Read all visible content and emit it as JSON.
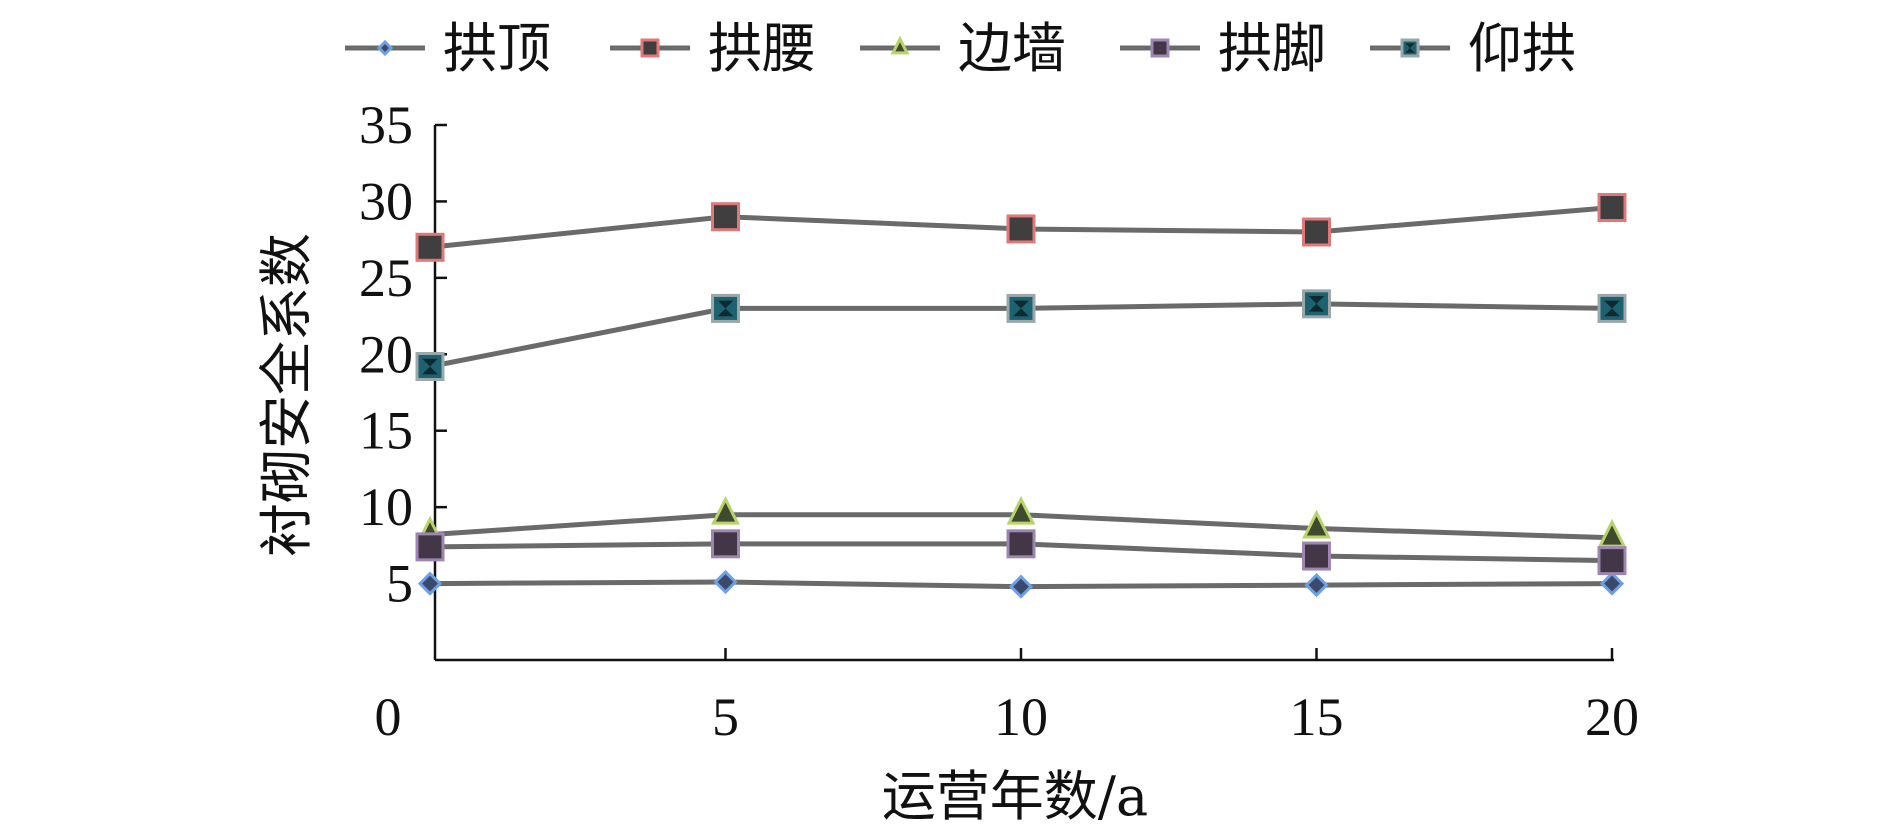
{
  "chart_data": {
    "type": "line",
    "title": "",
    "xlabel": "运营年数/a",
    "ylabel": "衬砌安全系数",
    "x": [
      0,
      5,
      10,
      15,
      20
    ],
    "x_ticks": [
      "0",
      "5",
      "10",
      "15",
      "20"
    ],
    "y_ticks": [
      "5",
      "10",
      "15",
      "20",
      "25",
      "30",
      "35"
    ],
    "xlim": [
      0,
      20
    ],
    "ylim": [
      0,
      35
    ],
    "grid": false,
    "legend_position": "top",
    "series": [
      {
        "name": "拱顶",
        "marker": "diamond",
        "marker_color": "#3b4a6b",
        "marker_edge": "#6ea0e6",
        "values": [
          5.0,
          5.1,
          4.8,
          4.9,
          5.0
        ]
      },
      {
        "name": "拱腰",
        "marker": "square",
        "marker_color": "#3f3f3f",
        "marker_edge": "#e0787a",
        "values": [
          27.0,
          29.0,
          28.2,
          28.0,
          29.6
        ]
      },
      {
        "name": "边墙",
        "marker": "triangle",
        "marker_color": "#3f4a2e",
        "marker_edge": "#b7d36a",
        "values": [
          8.2,
          9.5,
          9.5,
          8.6,
          8.0
        ]
      },
      {
        "name": "拱脚",
        "marker": "square",
        "marker_color": "#433646",
        "marker_edge": "#9d86b0",
        "values": [
          7.4,
          7.6,
          7.6,
          6.8,
          6.5
        ]
      },
      {
        "name": "仰拱",
        "marker": "hourglass",
        "marker_color": "#1d6270",
        "marker_edge": "#9aa8aa",
        "values": [
          19.2,
          23.0,
          23.0,
          23.3,
          23.0
        ]
      }
    ]
  }
}
